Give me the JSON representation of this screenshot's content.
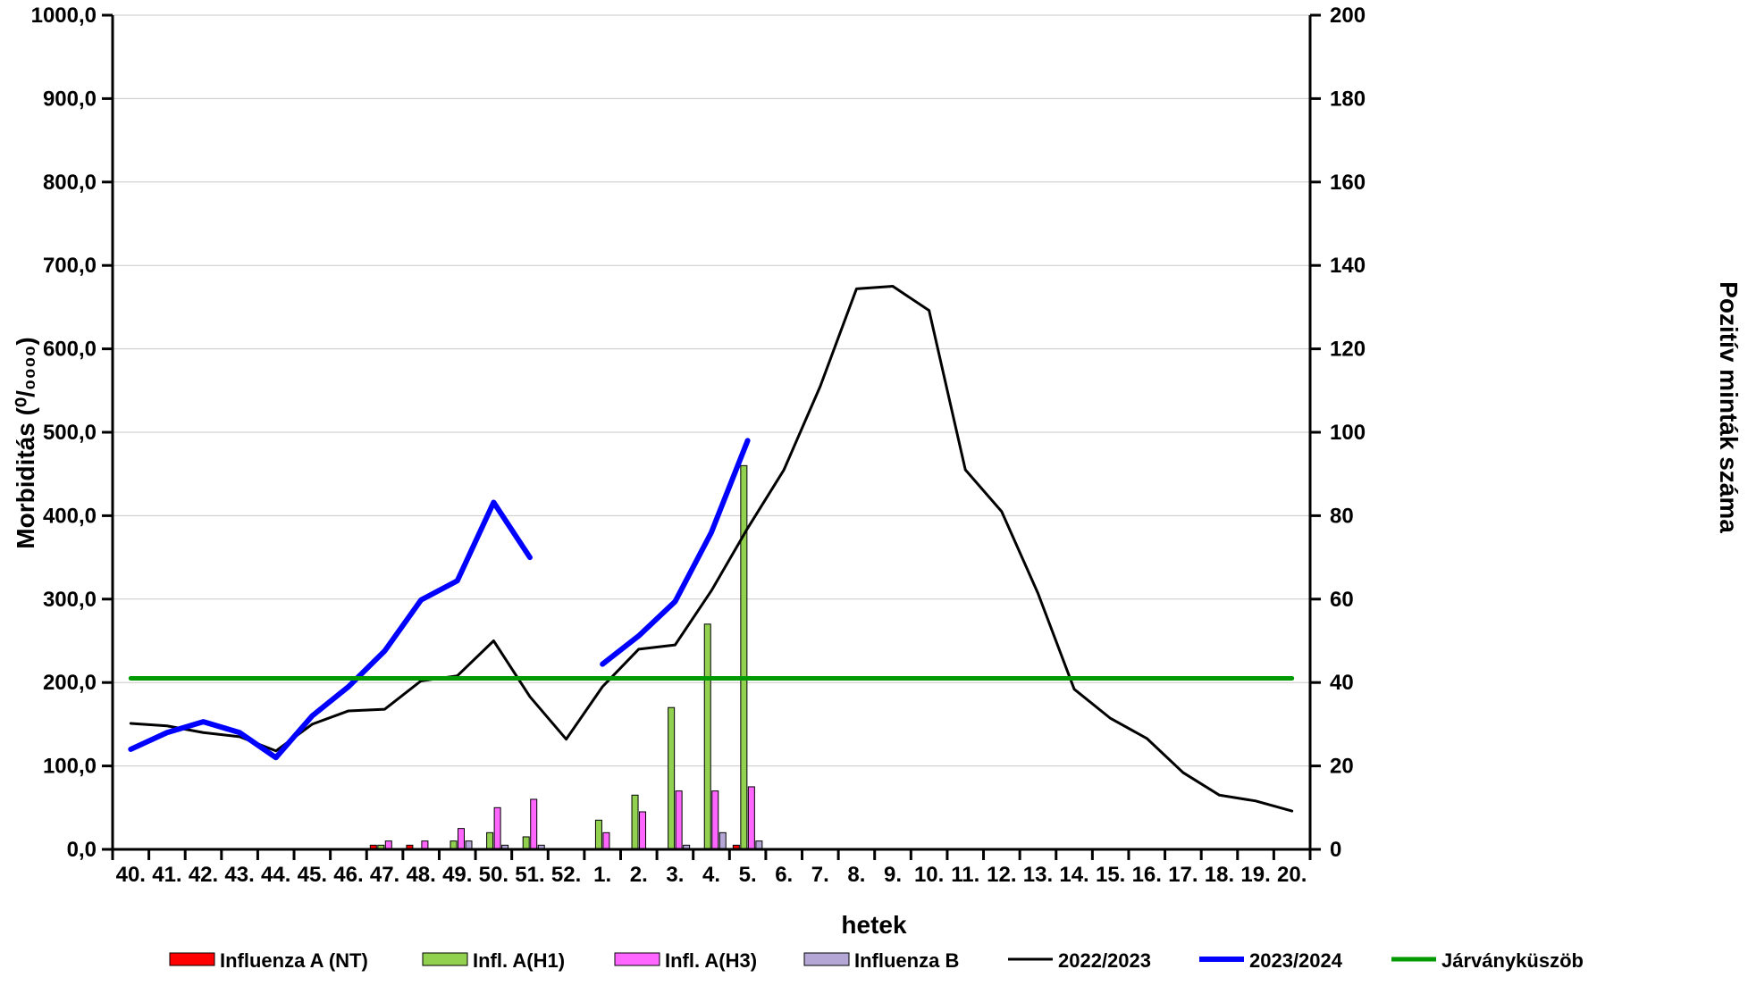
{
  "chart_data": {
    "type": "bar+line",
    "x_title": "hetek",
    "y_left_title": "Morbiditás (⁰/₀₀₀₀)",
    "y_right_title": "Pozitív minták száma",
    "y_left_range": [
      0,
      1000
    ],
    "y_left_ticks": [
      "0,0",
      "100,0",
      "200,0",
      "300,0",
      "400,0",
      "500,0",
      "600,0",
      "700,0",
      "800,0",
      "900,0",
      "1000,0"
    ],
    "y_right_range": [
      0,
      200
    ],
    "y_right_ticks": [
      "0",
      "20",
      "40",
      "60",
      "80",
      "100",
      "120",
      "140",
      "160",
      "180",
      "200"
    ],
    "grid": "horizontal",
    "legend_position": "bottom",
    "categories": [
      "40.",
      "41.",
      "42.",
      "43.",
      "44.",
      "45.",
      "46.",
      "47.",
      "48.",
      "49.",
      "50.",
      "51.",
      "52.",
      "1.",
      "2.",
      "3.",
      "4.",
      "5.",
      "6.",
      "7.",
      "8.",
      "9.",
      "10.",
      "11.",
      "12.",
      "13.",
      "14.",
      "15.",
      "16.",
      "17.",
      "18.",
      "19.",
      "20."
    ],
    "bar_series": [
      {
        "name": "Influenza A (NT)",
        "color": "#ff0000",
        "axis": "right",
        "values": [
          0,
          0,
          0,
          0,
          0,
          0,
          0,
          1,
          1,
          0,
          0,
          0,
          0,
          0,
          0,
          0,
          0,
          1,
          0,
          0,
          0,
          0,
          0,
          0,
          0,
          0,
          0,
          0,
          0,
          0,
          0,
          0,
          0
        ]
      },
      {
        "name": "Infl. A(H1)",
        "color": "#92d050",
        "axis": "right",
        "values": [
          0,
          0,
          0,
          0,
          0,
          0,
          0,
          1,
          0,
          2,
          4,
          3,
          0,
          7,
          13,
          34,
          54,
          92,
          0,
          0,
          0,
          0,
          0,
          0,
          0,
          0,
          0,
          0,
          0,
          0,
          0,
          0,
          0
        ]
      },
      {
        "name": "Infl. A(H3)",
        "color": "#ff66ff",
        "axis": "right",
        "values": [
          0,
          0,
          0,
          0,
          0,
          0,
          0,
          2,
          2,
          5,
          10,
          12,
          0,
          4,
          9,
          14,
          14,
          15,
          0,
          0,
          0,
          0,
          0,
          0,
          0,
          0,
          0,
          0,
          0,
          0,
          0,
          0,
          0
        ]
      },
      {
        "name": "Influenza B",
        "color": "#b4a7d6",
        "axis": "right",
        "values": [
          0,
          0,
          0,
          0,
          0,
          0,
          0,
          0,
          0,
          2,
          1,
          1,
          0,
          0,
          0,
          1,
          4,
          2,
          0,
          0,
          0,
          0,
          0,
          0,
          0,
          0,
          0,
          0,
          0,
          0,
          0,
          0,
          0
        ]
      }
    ],
    "line_series": [
      {
        "name": "2022/2023",
        "color": "#000000",
        "axis": "left",
        "values": [
          151,
          148,
          140,
          135,
          118,
          150,
          166,
          168,
          202,
          208,
          250,
          183,
          132,
          195,
          240,
          245,
          310,
          385,
          455,
          555,
          672,
          675,
          646,
          455,
          405,
          307,
          192,
          157,
          133,
          92,
          65,
          58,
          46
        ]
      },
      {
        "name": "2023/2024",
        "color": "#0000ff",
        "axis": "left",
        "values": [
          120,
          140,
          153,
          140,
          110,
          160,
          195,
          238,
          299,
          322,
          416,
          350,
          null,
          222,
          256,
          297,
          380,
          490,
          null,
          null,
          null,
          null,
          null,
          null,
          null,
          null,
          null,
          null,
          null,
          null,
          null,
          null,
          null
        ]
      },
      {
        "name": "Járványküszöb",
        "color": "#009900",
        "axis": "left",
        "values": [
          205,
          205,
          205,
          205,
          205,
          205,
          205,
          205,
          205,
          205,
          205,
          205,
          205,
          205,
          205,
          205,
          205,
          205,
          205,
          205,
          205,
          205,
          205,
          205,
          205,
          205,
          205,
          205,
          205,
          205,
          205,
          205,
          205
        ]
      }
    ]
  }
}
